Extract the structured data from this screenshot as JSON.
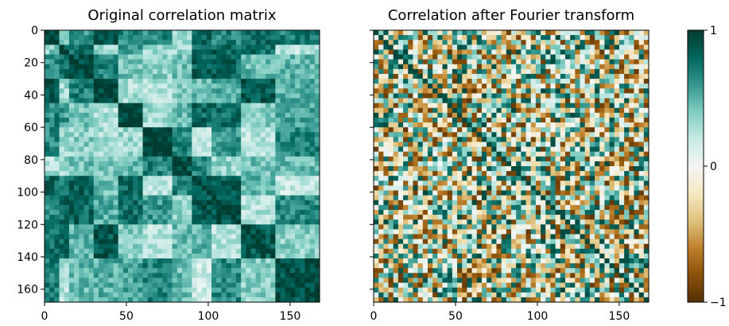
{
  "chart_data": [
    {
      "type": "heatmap",
      "title": "Original correlation matrix",
      "matrix_size": 168,
      "xlim": [
        0,
        168
      ],
      "ylim": [
        168,
        0
      ],
      "xticks": [
        "0",
        "50",
        "100",
        "150"
      ],
      "xtick_values": [
        0,
        50,
        100,
        150
      ],
      "yticks": [
        "0",
        "20",
        "40",
        "60",
        "80",
        "100",
        "120",
        "140",
        "160"
      ],
      "ytick_values": [
        0,
        20,
        40,
        60,
        80,
        100,
        120,
        140,
        160
      ],
      "value_range": [
        -1,
        1
      ],
      "colormap": "BrBG",
      "structure": "block correlation structure, mostly positive (0.3 to 1), strong diagonal"
    },
    {
      "type": "heatmap",
      "title": "Correlation after Fourier transform",
      "matrix_size": 168,
      "xlim": [
        0,
        168
      ],
      "ylim": [
        168,
        0
      ],
      "xticks": [
        "0",
        "50",
        "100",
        "150"
      ],
      "xtick_values": [
        0,
        50,
        100,
        150
      ],
      "value_range": [
        -1,
        1
      ],
      "colormap": "BrBG",
      "structure": "noisy, weakly correlated values centered near 0, strong diagonal"
    }
  ],
  "colorbar": {
    "ticks": [
      "1",
      "0",
      "−1"
    ],
    "tick_values": [
      1,
      0,
      -1
    ],
    "colors": [
      "#543005",
      "#8c510a",
      "#bf812d",
      "#dfc27d",
      "#f6e8c3",
      "#f5f5f5",
      "#c7eae5",
      "#80cdc1",
      "#35978f",
      "#01665e",
      "#003c30"
    ]
  }
}
